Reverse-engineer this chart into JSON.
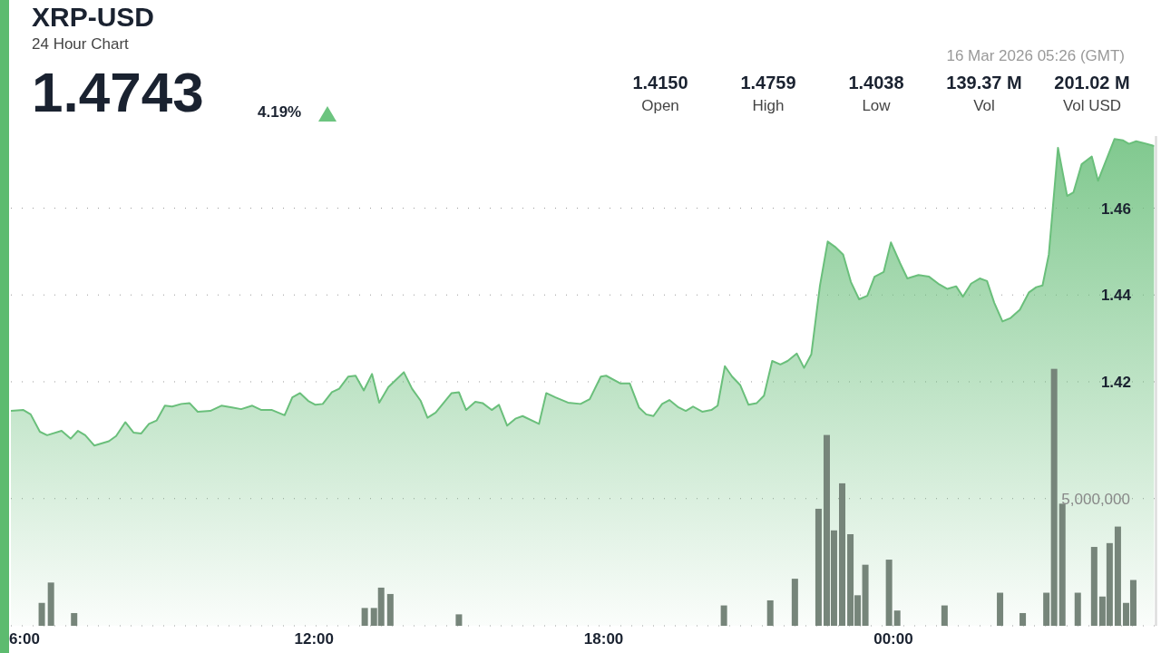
{
  "chart_data": {
    "type": "area",
    "title": "XRP-USD",
    "subtitle": "24 Hour Chart",
    "annotations": [
      "1.4743",
      "4.19%",
      "16 Mar 2026 05:26 (GMT)",
      "1.4150",
      "Open",
      "1.4759",
      "High",
      "1.4038",
      "Low",
      "139.37 M",
      "Vol",
      "201.02 M",
      "Vol USD"
    ],
    "series": [
      {
        "type": "area",
        "color": "#6abf7b",
        "x": [
          5.72,
          5.98,
          6.13,
          6.32,
          6.47,
          6.77,
          6.96,
          7.11,
          7.26,
          7.45,
          7.75,
          7.9,
          8.09,
          8.26,
          8.42,
          8.58,
          8.74,
          8.91,
          9.06,
          9.25,
          9.42,
          9.59,
          9.85,
          10.08,
          10.3,
          10.49,
          10.72,
          10.91,
          11.13,
          11.39,
          11.55,
          11.71,
          11.88,
          12.03,
          12.18,
          12.37,
          12.52,
          12.71,
          12.86,
          13.03,
          13.2,
          13.35,
          13.54,
          13.86,
          14.03,
          14.21,
          14.35,
          14.52,
          14.85,
          15.0,
          15.15,
          15.34,
          15.49,
          15.68,
          15.83,
          16.0,
          16.17,
          16.32,
          16.66,
          16.81,
          17.0,
          17.26,
          17.52,
          17.71,
          17.94,
          18.05,
          18.35,
          18.54,
          18.73,
          18.88,
          19.03,
          19.21,
          19.36,
          19.55,
          19.7,
          19.85,
          20.04,
          20.23,
          20.36,
          20.51,
          20.66,
          20.83,
          21.0,
          21.17,
          21.32,
          21.49,
          21.66,
          21.81,
          22.0,
          22.15,
          22.3,
          22.48,
          22.64,
          22.79,
          22.96,
          23.12,
          23.29,
          23.46,
          23.61,
          23.8,
          23.95,
          24.14,
          24.29,
          24.52,
          24.74,
          24.93,
          25.12,
          25.3,
          25.44,
          25.61,
          25.79,
          25.94,
          26.09,
          26.26,
          26.43,
          26.62,
          26.81,
          26.96,
          27.09,
          27.22,
          27.41,
          27.6,
          27.73,
          27.9,
          28.11,
          28.24,
          28.58,
          28.76,
          28.88,
          29.03,
          29.18,
          29.4
        ],
        "values": [
          1.4133,
          1.4135,
          1.4125,
          1.4085,
          1.4077,
          1.4087,
          1.4069,
          1.4087,
          1.4077,
          1.4053,
          1.4063,
          1.4075,
          1.4107,
          1.4083,
          1.4081,
          1.4103,
          1.4111,
          1.4145,
          1.4143,
          1.4149,
          1.4151,
          1.4131,
          1.4133,
          1.4145,
          1.4141,
          1.4137,
          1.4145,
          1.4135,
          1.4135,
          1.4123,
          1.4164,
          1.4174,
          1.4156,
          1.4147,
          1.4149,
          1.4176,
          1.4184,
          1.4212,
          1.4214,
          1.418,
          1.4218,
          1.4152,
          1.4188,
          1.4222,
          1.4184,
          1.4156,
          1.4117,
          1.4129,
          1.4174,
          1.4176,
          1.4135,
          1.4154,
          1.4151,
          1.4135,
          1.4147,
          1.4099,
          1.4115,
          1.4121,
          1.4103,
          1.4174,
          1.4164,
          1.4152,
          1.4149,
          1.416,
          1.4212,
          1.4214,
          1.4196,
          1.4196,
          1.4141,
          1.4125,
          1.4121,
          1.4149,
          1.4158,
          1.4141,
          1.4133,
          1.4143,
          1.4131,
          1.4135,
          1.4145,
          1.4236,
          1.4212,
          1.4192,
          1.4147,
          1.4151,
          1.4168,
          1.4248,
          1.424,
          1.4248,
          1.4265,
          1.4232,
          1.4263,
          1.4422,
          1.4523,
          1.4511,
          1.4493,
          1.443,
          1.439,
          1.4398,
          1.4442,
          1.4453,
          1.4521,
          1.4473,
          1.4438,
          1.4446,
          1.4442,
          1.4426,
          1.4414,
          1.442,
          1.4396,
          1.4426,
          1.4438,
          1.4432,
          1.4382,
          1.4339,
          1.4347,
          1.4366,
          1.4406,
          1.4418,
          1.4422,
          1.4493,
          1.4739,
          1.4628,
          1.4636,
          1.4701,
          1.4719,
          1.4663,
          1.4759,
          1.4756,
          1.4748,
          1.4754,
          1.475,
          1.4743
        ]
      },
      {
        "type": "bar",
        "axis": "y2",
        "color": "#76857a",
        "x": [
          6.36,
          6.55,
          7.03,
          13.05,
          13.24,
          13.39,
          13.58,
          15.0,
          20.49,
          21.45,
          21.96,
          22.45,
          22.62,
          22.77,
          22.94,
          23.11,
          23.26,
          23.42,
          23.91,
          24.08,
          25.06,
          26.21,
          26.68,
          27.17,
          27.33,
          27.5,
          27.82,
          28.16,
          28.33,
          28.48,
          28.65,
          28.82,
          28.97
        ],
        "values": [
          900000,
          1700000,
          500000,
          700000,
          700000,
          1500000,
          1250000,
          450000,
          800000,
          1000000,
          1850000,
          4600000,
          7500000,
          3750000,
          5600000,
          3600000,
          1200000,
          2400000,
          2600000,
          600000,
          800000,
          1300000,
          500000,
          1300000,
          10100000,
          4800000,
          1300000,
          3100000,
          1150000,
          3250000,
          3900000,
          900000,
          1800000
        ]
      }
    ],
    "xlim": [
      5.72,
      29.45
    ],
    "xticks": [
      {
        "value": 6,
        "label": "6:00"
      },
      {
        "value": 12,
        "label": "12:00"
      },
      {
        "value": 18,
        "label": "18:00"
      },
      {
        "value": 24,
        "label": "00:00"
      }
    ],
    "ylim": [
      1.3638,
      1.4766
    ],
    "yticks": [
      1.42,
      1.44,
      1.46
    ],
    "y2lim": [
      0,
      19250000
    ],
    "y2ticks": [
      {
        "value": 0,
        "label": null
      },
      {
        "value": 5000000,
        "label": "5,000,000"
      }
    ],
    "grid": "y"
  }
}
